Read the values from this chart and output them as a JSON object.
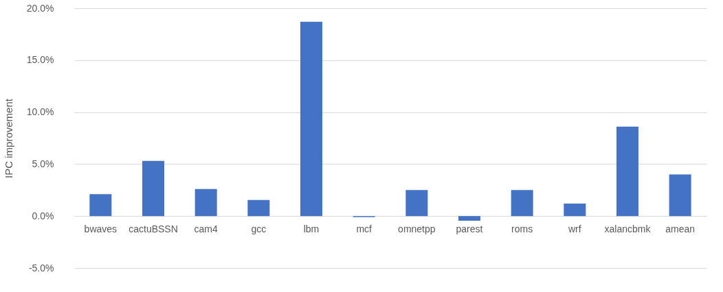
{
  "chart_data": {
    "type": "bar",
    "ylabel": "IPC improvement",
    "categories": [
      "bwaves",
      "cactuBSSN",
      "cam4",
      "gcc",
      "lbm",
      "mcf",
      "omnetpp",
      "parest",
      "roms",
      "wrf",
      "xalancbmk",
      "amean"
    ],
    "values": [
      2.1,
      5.3,
      2.6,
      1.55,
      18.7,
      -0.1,
      2.5,
      -0.45,
      2.5,
      1.2,
      8.6,
      4.0
    ],
    "color": "#4472c4",
    "ylim": [
      -5,
      20
    ],
    "yticks": [
      {
        "value": -5,
        "label": "-5.0%"
      },
      {
        "value": 0,
        "label": "0.0%"
      },
      {
        "value": 5,
        "label": "5.0%"
      },
      {
        "value": 10,
        "label": "10.0%"
      },
      {
        "value": 15,
        "label": "15.0%"
      },
      {
        "value": 20,
        "label": "20.0%"
      }
    ],
    "grid": "y"
  }
}
